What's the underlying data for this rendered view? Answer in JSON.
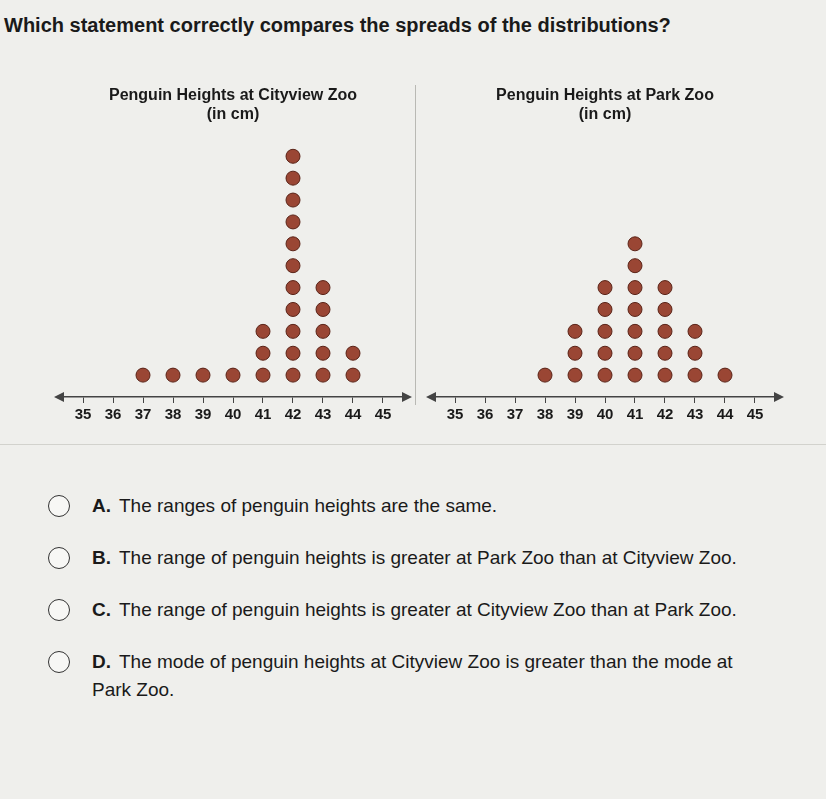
{
  "question": "Which statement correctly compares the spreads of the distributions?",
  "chart_data": [
    {
      "type": "dot",
      "title": [
        "Penguin Heights at Cityview Zoo",
        "(in cm)"
      ],
      "x": [
        37,
        38,
        39,
        40,
        41,
        42,
        43,
        44
      ],
      "values": [
        1,
        1,
        1,
        1,
        3,
        11,
        5,
        2
      ],
      "xlim": [
        34.3,
        45.7
      ],
      "xticks": [
        35,
        36,
        37,
        38,
        39,
        40,
        41,
        42,
        43,
        44,
        45
      ],
      "ylim": [
        0,
        12
      ],
      "color": "#9a4634",
      "marker": "circle",
      "grid": false,
      "tick_labels": "x"
    },
    {
      "type": "dot",
      "title": [
        "Penguin Heights at Park Zoo",
        "(in cm)"
      ],
      "x": [
        38,
        39,
        40,
        41,
        42,
        43,
        44
      ],
      "values": [
        1,
        3,
        5,
        7,
        5,
        3,
        1
      ],
      "xlim": [
        34.3,
        45.7
      ],
      "xticks": [
        35,
        36,
        37,
        38,
        39,
        40,
        41,
        42,
        43,
        44,
        45
      ],
      "ylim": [
        0,
        12
      ],
      "color": "#9a4634",
      "marker": "circle",
      "grid": false,
      "tick_labels": "x"
    }
  ],
  "options": [
    {
      "letter": "A.",
      "text": "The ranges of penguin heights are the same."
    },
    {
      "letter": "B.",
      "text": "The range of penguin heights is greater at Park Zoo than at Cityview Zoo."
    },
    {
      "letter": "C.",
      "text": "The range of penguin heights is greater at Cityview Zoo than at Park Zoo."
    },
    {
      "letter": "D.",
      "text": "The mode of penguin heights at Cityview Zoo is greater than the mode at Park Zoo."
    }
  ]
}
